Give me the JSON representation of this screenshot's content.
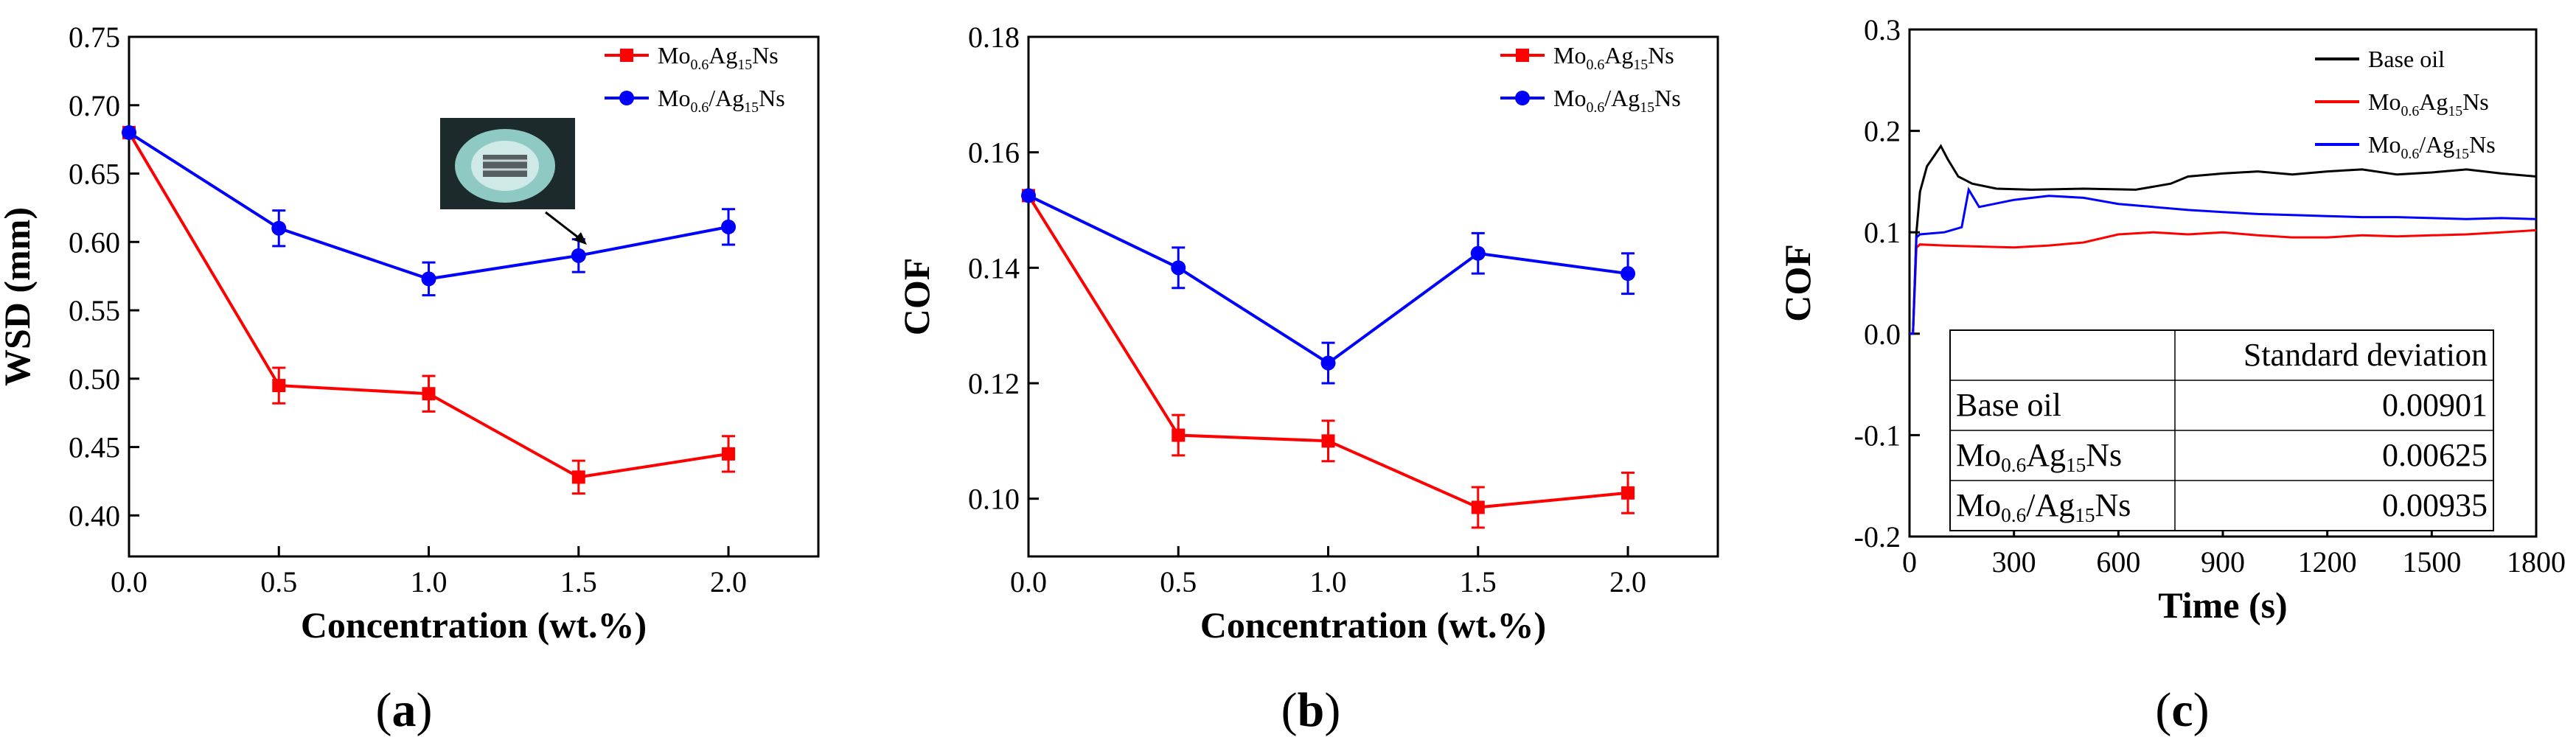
{
  "series_styles": {
    "red": "#ff0000",
    "blue": "#0000ff",
    "black": "#000000"
  },
  "chart_data": [
    {
      "id": "a",
      "type": "line",
      "panel_label": "(a)",
      "xlabel": "Concentration (wt.%)",
      "ylabel": "WSD (mm)",
      "xlim": [
        0,
        2.3
      ],
      "ylim": [
        0.37,
        0.75
      ],
      "xticks": [
        "0.0",
        "0.5",
        "1.0",
        "1.5",
        "2.0"
      ],
      "xtick_values": [
        0,
        0.5,
        1.0,
        1.5,
        2.0
      ],
      "yticks": [
        "0.40",
        "0.45",
        "0.50",
        "0.55",
        "0.60",
        "0.65",
        "0.70",
        "0.75"
      ],
      "ytick_values": [
        0.4,
        0.45,
        0.5,
        0.55,
        0.6,
        0.65,
        0.7,
        0.75
      ],
      "x": [
        0,
        0.5,
        1.0,
        1.5,
        2.0
      ],
      "series": [
        {
          "name": "Mo0.6Ag15Ns",
          "sub1": "0.6",
          "sub2": "15",
          "mid": "Ag",
          "color": "#ff0000",
          "marker": "square",
          "values": [
            0.68,
            0.495,
            0.489,
            0.428,
            0.445
          ],
          "errors": [
            0,
            0.013,
            0.013,
            0.012,
            0.013
          ]
        },
        {
          "name": "Mo0.6/Ag15Ns",
          "sub1": "0.6",
          "sub2": "15",
          "mid": "/Ag",
          "color": "#0000ff",
          "marker": "circle",
          "values": [
            0.68,
            0.61,
            0.573,
            0.59,
            0.611
          ],
          "errors": [
            0,
            0.013,
            0.012,
            0.012,
            0.013
          ]
        }
      ],
      "legend_position": "top-right",
      "inset": "wear scar micrograph with arrow to point at x=1.5"
    },
    {
      "id": "b",
      "type": "line",
      "panel_label": "(b)",
      "xlabel": "Concentration (wt.%)",
      "ylabel": "COF",
      "xlim": [
        0,
        2.3
      ],
      "ylim": [
        0.09,
        0.18
      ],
      "xticks": [
        "0.0",
        "0.5",
        "1.0",
        "1.5",
        "2.0"
      ],
      "xtick_values": [
        0,
        0.5,
        1.0,
        1.5,
        2.0
      ],
      "yticks": [
        "0.10",
        "0.12",
        "0.14",
        "0.16",
        "0.18"
      ],
      "ytick_values": [
        0.1,
        0.12,
        0.14,
        0.16,
        0.18
      ],
      "x": [
        0,
        0.5,
        1.0,
        1.5,
        2.0
      ],
      "series": [
        {
          "name": "Mo0.6Ag15Ns",
          "sub1": "0.6",
          "sub2": "15",
          "mid": "Ag",
          "color": "#ff0000",
          "marker": "square",
          "values": [
            0.1525,
            0.111,
            0.11,
            0.0985,
            0.101
          ],
          "errors": [
            0,
            0.0035,
            0.0035,
            0.0035,
            0.0035
          ]
        },
        {
          "name": "Mo0.6/Ag15Ns",
          "sub1": "0.6",
          "sub2": "15",
          "mid": "/Ag",
          "color": "#0000ff",
          "marker": "circle",
          "values": [
            0.1525,
            0.14,
            0.1235,
            0.1425,
            0.139
          ],
          "errors": [
            0,
            0.0035,
            0.0035,
            0.0035,
            0.0035
          ]
        }
      ],
      "legend_position": "top-right"
    },
    {
      "id": "c",
      "type": "line",
      "panel_label": "(c)",
      "xlabel": "Time (s)",
      "ylabel": "COF",
      "xlim": [
        0,
        1800
      ],
      "ylim": [
        -0.2,
        0.3
      ],
      "xticks": [
        "0",
        "300",
        "600",
        "900",
        "1200",
        "1500",
        "1800"
      ],
      "xtick_values": [
        0,
        300,
        600,
        900,
        1200,
        1500,
        1800
      ],
      "yticks": [
        "-0.2",
        "-0.1",
        "0.0",
        "0.1",
        "0.2",
        "0.3"
      ],
      "ytick_values": [
        -0.2,
        -0.1,
        0.0,
        0.1,
        0.2,
        0.3
      ],
      "series": [
        {
          "name": "Base oil",
          "color": "#000000",
          "x": [
            0,
            10,
            20,
            30,
            50,
            70,
            90,
            110,
            140,
            180,
            250,
            350,
            500,
            650,
            750,
            800,
            900,
            1000,
            1100,
            1200,
            1300,
            1400,
            1500,
            1600,
            1700,
            1800
          ],
          "values": [
            0.0,
            0.0,
            0.1,
            0.14,
            0.165,
            0.175,
            0.185,
            0.172,
            0.155,
            0.148,
            0.143,
            0.142,
            0.143,
            0.142,
            0.148,
            0.155,
            0.158,
            0.16,
            0.157,
            0.16,
            0.162,
            0.157,
            0.159,
            0.162,
            0.158,
            0.155
          ]
        },
        {
          "name": "Mo0.6Ag15Ns",
          "sub1": "0.6",
          "sub2": "15",
          "mid": "Ag",
          "color": "#ff0000",
          "x": [
            0,
            10,
            20,
            30,
            100,
            200,
            300,
            400,
            500,
            600,
            700,
            800,
            900,
            1000,
            1100,
            1200,
            1300,
            1400,
            1500,
            1600,
            1700,
            1800
          ],
          "values": [
            0.0,
            0.0,
            0.085,
            0.088,
            0.087,
            0.086,
            0.085,
            0.087,
            0.09,
            0.098,
            0.1,
            0.098,
            0.1,
            0.097,
            0.095,
            0.095,
            0.097,
            0.096,
            0.097,
            0.098,
            0.1,
            0.102
          ]
        },
        {
          "name": "Mo0.6/Ag15Ns",
          "sub1": "0.6",
          "sub2": "15",
          "mid": "/Ag",
          "color": "#0000ff",
          "x": [
            0,
            10,
            20,
            30,
            100,
            150,
            170,
            200,
            300,
            400,
            500,
            600,
            700,
            800,
            900,
            1000,
            1100,
            1200,
            1300,
            1400,
            1500,
            1600,
            1700,
            1800
          ],
          "values": [
            0.0,
            0.0,
            0.095,
            0.098,
            0.1,
            0.105,
            0.142,
            0.125,
            0.132,
            0.136,
            0.134,
            0.128,
            0.125,
            0.122,
            0.12,
            0.118,
            0.117,
            0.116,
            0.115,
            0.115,
            0.114,
            0.113,
            0.114,
            0.113
          ]
        }
      ],
      "legend_position": "top-right",
      "table": {
        "header": [
          "",
          "Standard deviation"
        ],
        "rows": [
          {
            "label": "Base oil",
            "value": "0.00901"
          },
          {
            "label": "Mo0.6Ag15Ns",
            "sub1": "0.6",
            "sub2": "15",
            "mid": "Ag",
            "value": "0.00625"
          },
          {
            "label": "Mo0.6/Ag15Ns",
            "sub1": "0.6",
            "sub2": "15",
            "mid": "/Ag",
            "value": "0.00935"
          }
        ]
      }
    }
  ]
}
